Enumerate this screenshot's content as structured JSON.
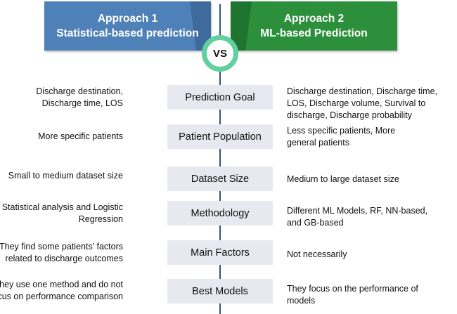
{
  "approach1": {
    "title": "Approach 1",
    "subtitle": "Statistical-based prediction",
    "color": "#4f81b9"
  },
  "approach2": {
    "title": "Approach 2",
    "subtitle": "ML-based Prediction",
    "color": "#2b8f3c"
  },
  "vs_label": "VS",
  "rows": [
    {
      "criterion": "Prediction Goal",
      "left": "Discharge destination, Discharge time, LOS",
      "right": "Discharge destination, Discharge time, LOS, Discharge volume, Survival to discharge, Discharge probability"
    },
    {
      "criterion": "Patient Population",
      "left": "More specific patients",
      "right": "Less specific patients, More general patients"
    },
    {
      "criterion": "Dataset Size",
      "left": "Small to medium dataset size",
      "right": "Medium to large dataset size"
    },
    {
      "criterion": "Methodology",
      "left": "Statistical analysis and Logistic Regression",
      "right": "Different ML Models, RF, NN-based, and GB-based"
    },
    {
      "criterion": "Main Factors",
      "left": "They find some patients’ factors related to discharge outcomes",
      "right": "Not necessarily"
    },
    {
      "criterion": "Best Models",
      "left": "They use one method and do not focus on performance comparison",
      "right": "They focus on the performance of models"
    }
  ]
}
